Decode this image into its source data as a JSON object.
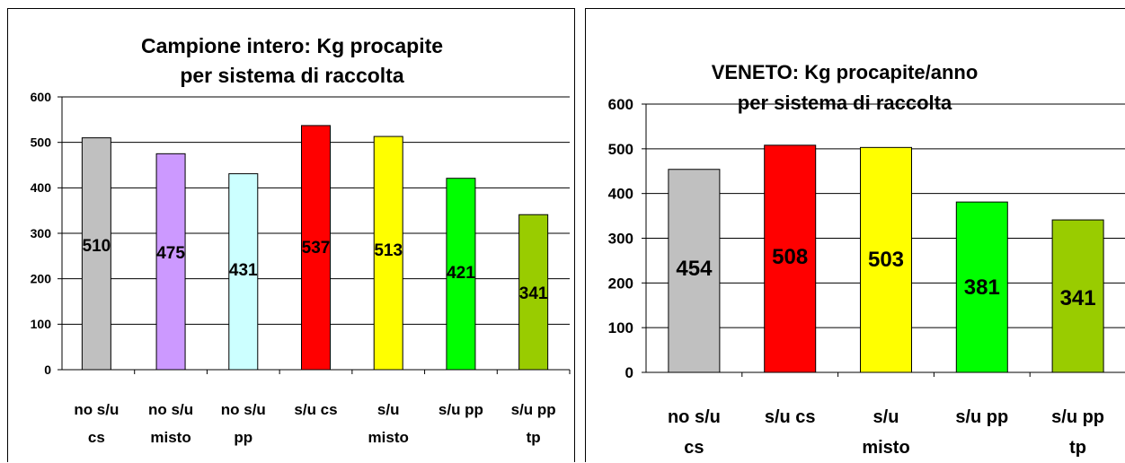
{
  "chart_data": [
    {
      "type": "bar",
      "title": [
        "Campione intero: Kg procapite",
        "per sistema di raccolta"
      ],
      "categories": [
        [
          "no s/u",
          "cs"
        ],
        [
          "no s/u",
          "misto"
        ],
        [
          "no s/u",
          "pp"
        ],
        [
          "s/u cs"
        ],
        [
          "s/u",
          "misto"
        ],
        [
          "s/u pp"
        ],
        [
          "s/u pp",
          "tp"
        ]
      ],
      "values": [
        510,
        475,
        431,
        537,
        513,
        421,
        341
      ],
      "colors": [
        "#C0C0C0",
        "#CC99FF",
        "#CCFFFF",
        "#FF0000",
        "#FFFF00",
        "#00FF00",
        "#99CC00"
      ],
      "ylim": [
        0,
        600
      ],
      "yticks": [
        "0",
        "100",
        "200",
        "300",
        "400",
        "500",
        "600"
      ],
      "grid": true,
      "xlabel": "",
      "ylabel": ""
    },
    {
      "type": "bar",
      "title": [
        "VENETO: Kg procapite/anno",
        "per sistema di raccolta"
      ],
      "categories": [
        [
          "no s/u",
          "cs"
        ],
        [
          "s/u cs"
        ],
        [
          "s/u",
          "misto"
        ],
        [
          "s/u pp"
        ],
        [
          "s/u pp",
          "tp"
        ]
      ],
      "values": [
        454,
        508,
        503,
        381,
        341
      ],
      "colors": [
        "#C0C0C0",
        "#FF0000",
        "#FFFF00",
        "#00FF00",
        "#99CC00"
      ],
      "ylim": [
        0,
        600
      ],
      "yticks": [
        "0",
        "100",
        "200",
        "300",
        "400",
        "500",
        "600"
      ],
      "grid": true,
      "xlabel": "",
      "ylabel": ""
    }
  ]
}
